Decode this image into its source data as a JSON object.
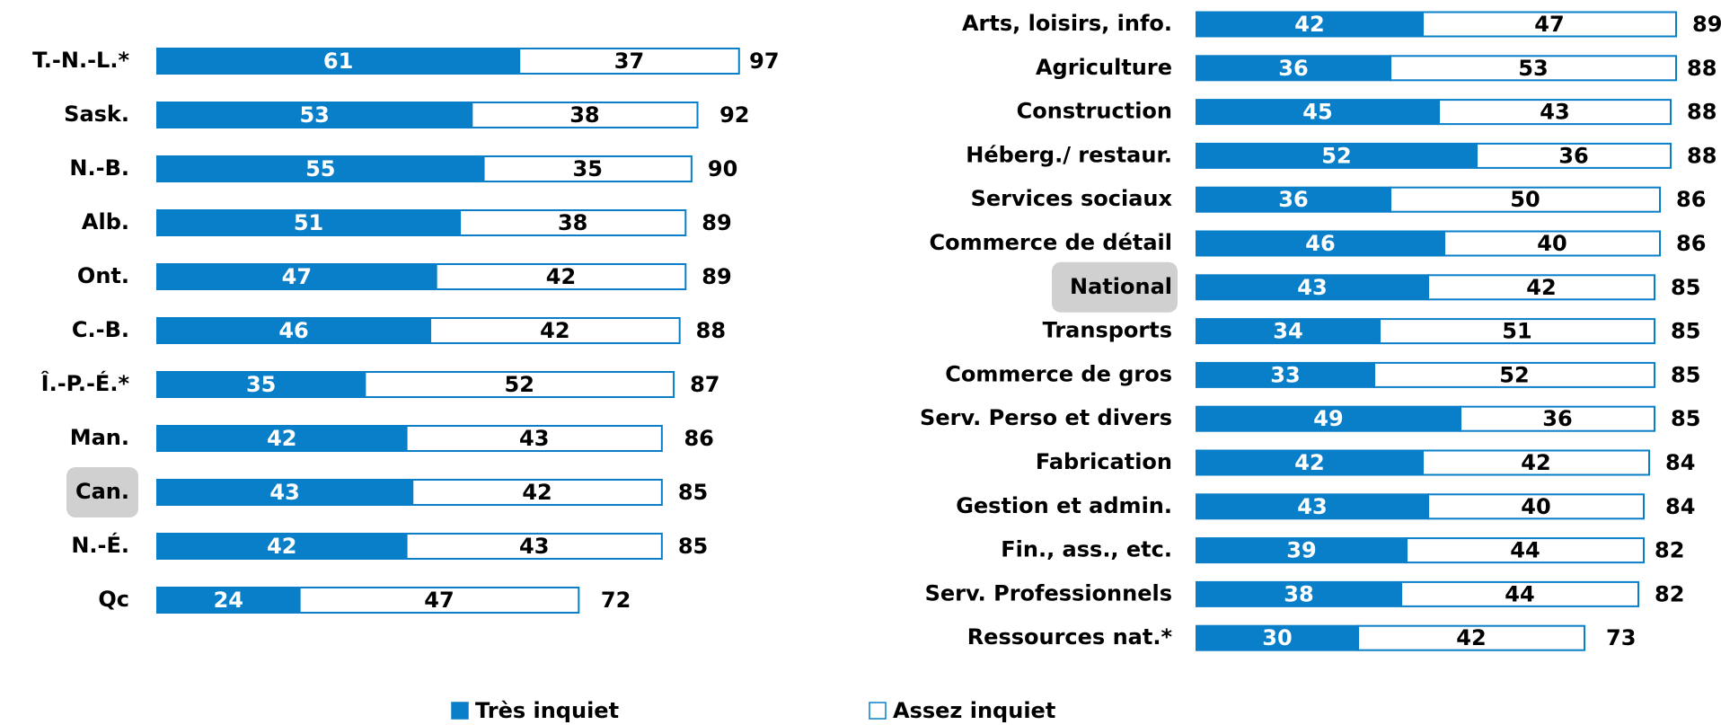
{
  "legend": [
    {
      "name": "Très inquiet",
      "color": "#0a7fc9"
    },
    {
      "name": "Assez inquiet",
      "color": "#ffffff"
    }
  ],
  "chart_data": [
    {
      "type": "stacked-barh",
      "categories": [
        "T.-N.-L.*",
        "Sask.",
        "N.-B.",
        "Alb.",
        "Ont.",
        "C.-B.",
        "Î.-P.-É.*",
        "Man.",
        "Can.",
        "N.-É.",
        "Qc"
      ],
      "series": [
        {
          "values": [
            61,
            53,
            55,
            51,
            47,
            46,
            35,
            42,
            43,
            42,
            24
          ]
        },
        {
          "values": [
            37,
            38,
            35,
            38,
            42,
            42,
            52,
            43,
            42,
            43,
            47
          ]
        }
      ],
      "totals": [
        97,
        92,
        90,
        89,
        89,
        88,
        87,
        86,
        85,
        85,
        72
      ],
      "highlight": 8,
      "xlim": [
        0,
        100
      ]
    },
    {
      "type": "stacked-barh",
      "categories": [
        "Arts, loisirs, info.",
        "Agriculture",
        "Construction",
        "Héberg./ restaur.",
        "Services sociaux",
        "Commerce de détail",
        "National",
        "Transports",
        "Commerce de gros",
        "Serv. Perso et divers",
        "Fabrication",
        "Gestion et admin.",
        "Fin., ass., etc.",
        "Serv. Professionnels",
        "Ressources nat.*"
      ],
      "series": [
        {
          "values": [
            42,
            36,
            45,
            52,
            36,
            46,
            43,
            34,
            33,
            49,
            42,
            43,
            39,
            38,
            30
          ]
        },
        {
          "values": [
            47,
            53,
            43,
            36,
            50,
            40,
            42,
            51,
            52,
            36,
            42,
            40,
            44,
            44,
            42
          ]
        }
      ],
      "totals": [
        89,
        88,
        88,
        88,
        86,
        86,
        85,
        85,
        85,
        85,
        84,
        84,
        82,
        82,
        73
      ],
      "highlight": 6,
      "xlim": [
        0,
        100
      ]
    }
  ]
}
